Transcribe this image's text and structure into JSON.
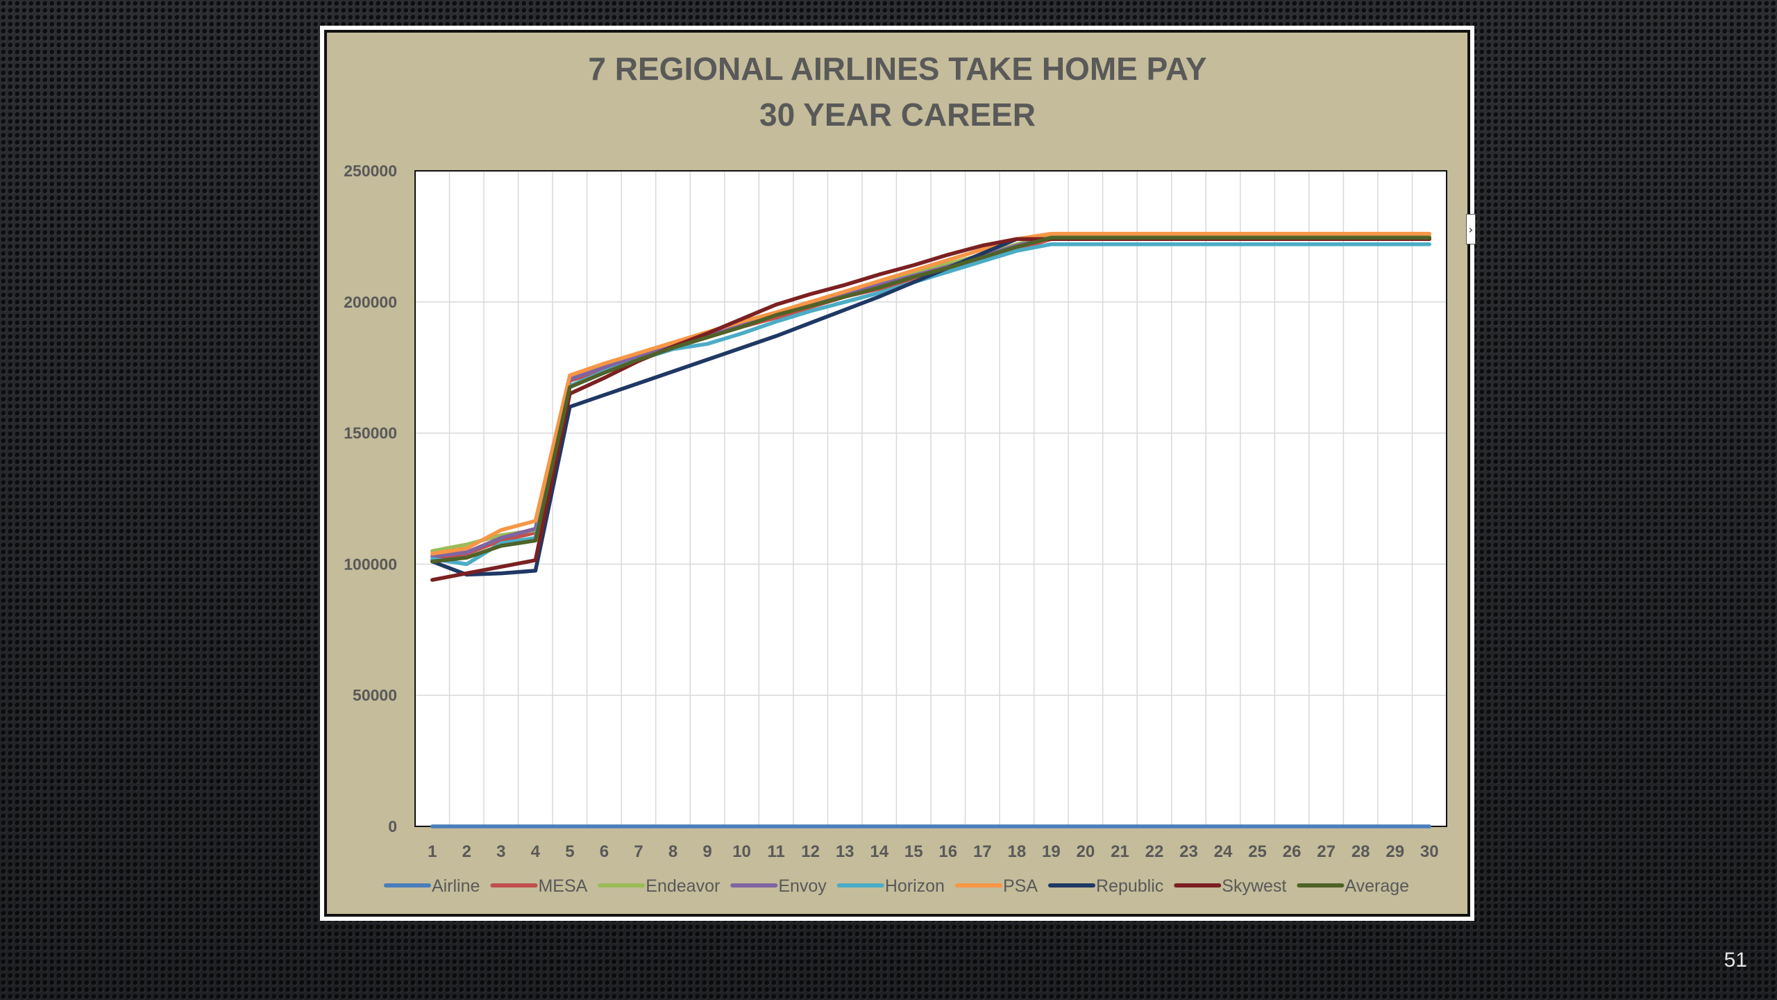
{
  "slide": {
    "number": "51"
  },
  "chart_data": {
    "type": "line",
    "title_lines": [
      "7 REGIONAL AIRLINES TAKE HOME PAY",
      "30 YEAR CAREER"
    ],
    "xlabel": "",
    "ylabel": "",
    "x": [
      1,
      2,
      3,
      4,
      5,
      6,
      7,
      8,
      9,
      10,
      11,
      12,
      13,
      14,
      15,
      16,
      17,
      18,
      19,
      20,
      21,
      22,
      23,
      24,
      25,
      26,
      27,
      28,
      29,
      30
    ],
    "ylim": [
      0,
      250000
    ],
    "yticks": [
      0,
      50000,
      100000,
      150000,
      200000,
      250000
    ],
    "ytick_labels": [
      "0",
      "50000",
      "100000",
      "150000",
      "200000",
      "250000"
    ],
    "grid": true,
    "legend_position": "bottom",
    "series": [
      {
        "name": "Airline",
        "color": "#4a7ebb",
        "values": [
          0,
          0,
          0,
          0,
          0,
          0,
          0,
          0,
          0,
          0,
          0,
          0,
          0,
          0,
          0,
          0,
          0,
          0,
          0,
          0,
          0,
          0,
          0,
          0,
          0,
          0,
          0,
          0,
          0,
          0
        ]
      },
      {
        "name": "MESA",
        "color": "#c0504d",
        "values": [
          101500,
          104000,
          109000,
          112000,
          170000,
          174000,
          178500,
          182500,
          186500,
          190500,
          194000,
          198000,
          202000,
          205000,
          208000,
          212000,
          216000,
          220000,
          224000,
          224500,
          224500,
          224500,
          224500,
          224500,
          224500,
          224500,
          224500,
          224500,
          224500,
          224500
        ]
      },
      {
        "name": "Endeavor",
        "color": "#9bbb59",
        "values": [
          105000,
          107500,
          111000,
          113000,
          171000,
          175500,
          180000,
          184000,
          188000,
          192000,
          196000,
          200000,
          203500,
          207000,
          211000,
          214500,
          218000,
          222000,
          225000,
          225000,
          225000,
          225000,
          225000,
          225000,
          225000,
          225000,
          225000,
          225000,
          225000,
          225000
        ]
      },
      {
        "name": "Envoy",
        "color": "#8064a2",
        "values": [
          103000,
          104500,
          110000,
          113500,
          170500,
          175000,
          179000,
          183500,
          187500,
          191500,
          195500,
          199500,
          203000,
          206500,
          210000,
          213500,
          217500,
          221500,
          224500,
          224500,
          224500,
          224500,
          224500,
          224500,
          224500,
          224500,
          224500,
          224500,
          224500,
          224500
        ]
      },
      {
        "name": "Horizon",
        "color": "#4bacc6",
        "values": [
          102000,
          100000,
          108000,
          110000,
          168000,
          173500,
          178000,
          182000,
          184000,
          188000,
          192500,
          196500,
          200000,
          203500,
          207500,
          211500,
          215500,
          219500,
          222000,
          222000,
          222000,
          222000,
          222000,
          222000,
          222000,
          222000,
          222000,
          222000,
          222000,
          222000
        ]
      },
      {
        "name": "PSA",
        "color": "#f79646",
        "values": [
          104000,
          106000,
          113000,
          116500,
          172000,
          176500,
          180500,
          184500,
          188500,
          192500,
          196000,
          200000,
          204000,
          208000,
          212000,
          216000,
          220000,
          224000,
          226000,
          226000,
          226000,
          226000,
          226000,
          226000,
          226000,
          226000,
          226000,
          226000,
          226000,
          226000
        ]
      },
      {
        "name": "Republic",
        "color": "#1f3864",
        "values": [
          101000,
          96000,
          96500,
          97500,
          160000,
          164500,
          169000,
          173500,
          178000,
          182500,
          187000,
          192000,
          197000,
          202000,
          207500,
          213000,
          218500,
          224000,
          224000,
          224000,
          224000,
          224000,
          224000,
          224000,
          224000,
          224000,
          224000,
          224000,
          224000,
          224000
        ]
      },
      {
        "name": "Skywest",
        "color": "#7b2022",
        "values": [
          94000,
          96500,
          99000,
          101500,
          165000,
          171000,
          177500,
          183000,
          188000,
          193500,
          199000,
          203000,
          206500,
          210500,
          214000,
          218000,
          221500,
          224000,
          224000,
          224000,
          224000,
          224000,
          224000,
          224000,
          224000,
          224000,
          224000,
          224000,
          224000,
          224000
        ]
      },
      {
        "name": "Average",
        "color": "#4f6228",
        "values": [
          101000,
          102500,
          107000,
          109000,
          167500,
          173000,
          178000,
          182500,
          186500,
          190500,
          195000,
          198500,
          202000,
          205500,
          209500,
          213000,
          217000,
          221000,
          224500,
          224500,
          224500,
          224500,
          224500,
          224500,
          224500,
          224500,
          224500,
          224500,
          224500,
          224500
        ]
      }
    ]
  }
}
